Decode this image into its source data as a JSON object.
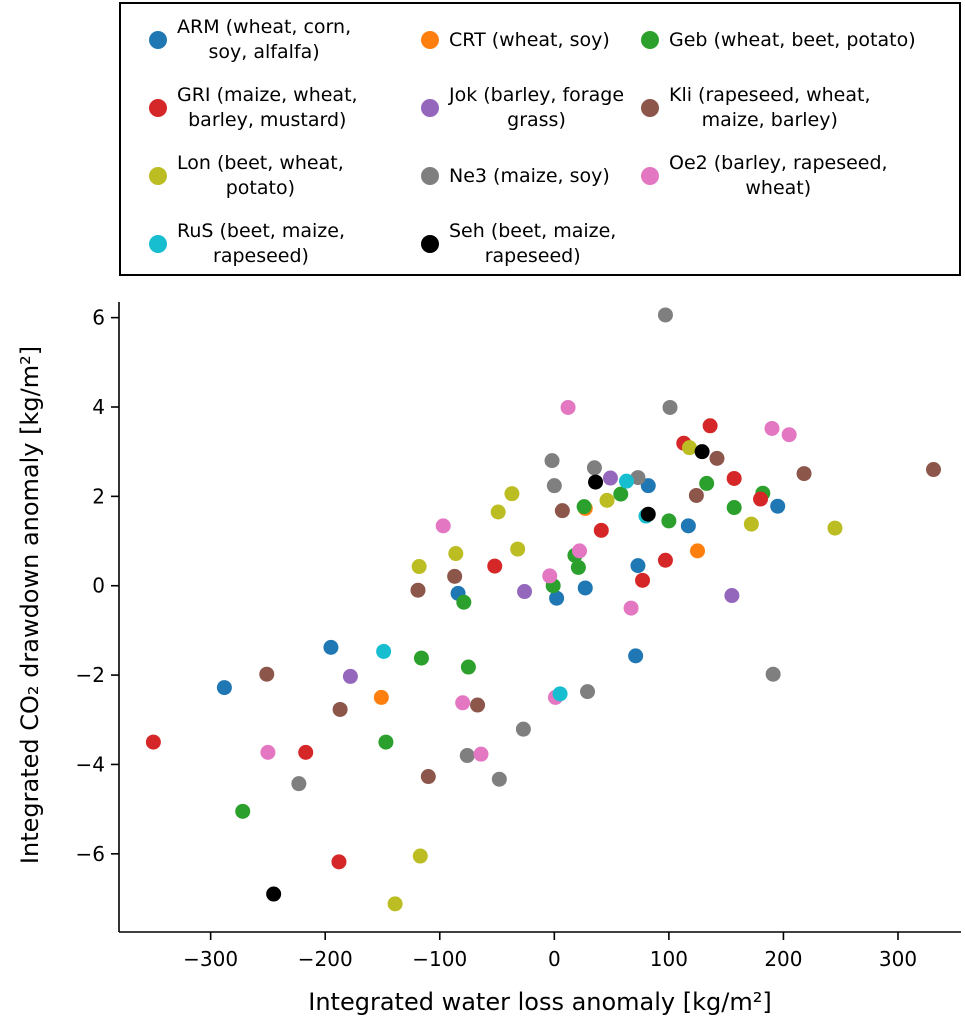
{
  "chart_data": {
    "type": "scatter",
    "xlabel": "Integrated water loss anomaly [kg/m²]",
    "ylabel": "Integrated CO₂ drawdown anomaly [kg/m²]",
    "xlim": [
      -380,
      355
    ],
    "ylim": [
      -7.75,
      6.35
    ],
    "xticks": [
      "−300",
      "−200",
      "−100",
      "0",
      "100",
      "200",
      "300"
    ],
    "xtick_values": [
      -300,
      -200,
      -100,
      0,
      100,
      200,
      300
    ],
    "yticks": [
      "−6",
      "−4",
      "−2",
      "0",
      "2",
      "4",
      "6"
    ],
    "ytick_values": [
      -6,
      -4,
      -2,
      0,
      2,
      4,
      6
    ],
    "grid": false,
    "legend_position": "top",
    "series": [
      {
        "name": "ARM (wheat, corn,\nsoy, alfalfa)",
        "color": "#1f77b4",
        "points": [
          [
            -288,
            -2.28
          ],
          [
            -195,
            -1.38
          ],
          [
            -84,
            -0.17
          ],
          [
            2,
            -0.28
          ],
          [
            27,
            -0.05
          ],
          [
            71,
            -1.57
          ],
          [
            73,
            0.45
          ],
          [
            82,
            2.24
          ],
          [
            117,
            1.34
          ],
          [
            195,
            1.78
          ]
        ]
      },
      {
        "name": "CRT (wheat, soy)",
        "color": "#ff7f0e",
        "points": [
          [
            -151,
            -2.5
          ],
          [
            27,
            1.73
          ],
          [
            125,
            0.78
          ]
        ]
      },
      {
        "name": "Geb (wheat, beet, potato)",
        "color": "#2ca02c",
        "points": [
          [
            -272,
            -5.05
          ],
          [
            -147,
            -3.5
          ],
          [
            -116,
            -1.62
          ],
          [
            -79,
            -0.37
          ],
          [
            -75,
            -1.82
          ],
          [
            -1,
            0.0
          ],
          [
            18,
            0.68
          ],
          [
            21,
            0.41
          ],
          [
            26,
            1.77
          ],
          [
            58,
            2.05
          ],
          [
            100,
            1.45
          ],
          [
            133,
            2.29
          ],
          [
            157,
            1.75
          ],
          [
            182,
            2.07
          ]
        ]
      },
      {
        "name": "GRI (maize, wheat,\nbarley, mustard)",
        "color": "#d62728",
        "points": [
          [
            -350,
            -3.5
          ],
          [
            -217,
            -3.73
          ],
          [
            -188,
            -6.18
          ],
          [
            -52,
            0.44
          ],
          [
            41,
            1.24
          ],
          [
            77,
            0.12
          ],
          [
            97,
            0.57
          ],
          [
            113,
            3.19
          ],
          [
            136,
            3.58
          ],
          [
            157,
            2.4
          ],
          [
            180,
            1.94
          ]
        ]
      },
      {
        "name": "Jok (barley, forage\ngrass)",
        "color": "#9467bd",
        "points": [
          [
            -178,
            -2.03
          ],
          [
            -26,
            -0.13
          ],
          [
            49,
            2.41
          ],
          [
            155,
            -0.22
          ]
        ]
      },
      {
        "name": "Kli (rapeseed, wheat,\nmaize, barley)",
        "color": "#8c564b",
        "points": [
          [
            -251,
            -1.98
          ],
          [
            -187,
            -2.77
          ],
          [
            -119,
            -0.1
          ],
          [
            -87,
            0.21
          ],
          [
            -110,
            -4.27
          ],
          [
            -67,
            -2.67
          ],
          [
            7,
            1.68
          ],
          [
            124,
            2.02
          ],
          [
            142,
            2.85
          ],
          [
            218,
            2.51
          ],
          [
            331,
            2.6
          ]
        ]
      },
      {
        "name": "Lon (beet, wheat,\npotato)",
        "color": "#bcbd22",
        "points": [
          [
            -139,
            -7.12
          ],
          [
            -118,
            0.43
          ],
          [
            -117,
            -6.05
          ],
          [
            -86,
            0.72
          ],
          [
            -49,
            1.65
          ],
          [
            -37,
            2.06
          ],
          [
            -32,
            0.82
          ],
          [
            46,
            1.91
          ],
          [
            118,
            3.09
          ],
          [
            172,
            1.38
          ],
          [
            245,
            1.29
          ]
        ]
      },
      {
        "name": "Ne3 (maize, soy)",
        "color": "#7f7f7f",
        "points": [
          [
            -223,
            -4.43
          ],
          [
            -76,
            -3.8
          ],
          [
            -48,
            -4.33
          ],
          [
            -27,
            -3.21
          ],
          [
            -2,
            2.8
          ],
          [
            0,
            2.24
          ],
          [
            29,
            -2.37
          ],
          [
            35,
            2.64
          ],
          [
            73,
            2.42
          ],
          [
            97,
            6.06
          ],
          [
            101,
            3.99
          ],
          [
            191,
            -1.98
          ]
        ]
      },
      {
        "name": "Oe2 (barley, rapeseed,\nwheat)",
        "color": "#e377c2",
        "points": [
          [
            -250,
            -3.73
          ],
          [
            -97,
            1.34
          ],
          [
            -80,
            -2.62
          ],
          [
            -64,
            -3.77
          ],
          [
            -4,
            0.22
          ],
          [
            1,
            -2.5
          ],
          [
            12,
            3.99
          ],
          [
            22,
            0.78
          ],
          [
            67,
            -0.5
          ],
          [
            190,
            3.52
          ],
          [
            205,
            3.38
          ]
        ]
      },
      {
        "name": "RuS (beet, maize,\nrapeseed)",
        "color": "#17becf",
        "points": [
          [
            -149,
            -1.47
          ],
          [
            5,
            -2.42
          ],
          [
            63,
            2.34
          ],
          [
            80,
            1.56
          ]
        ]
      },
      {
        "name": "Seh (beet, maize,\nrapeseed)",
        "color": "#000000",
        "points": [
          [
            -245,
            -6.9
          ],
          [
            36,
            2.32
          ],
          [
            82,
            1.6
          ],
          [
            129,
            3.0
          ]
        ]
      }
    ]
  }
}
